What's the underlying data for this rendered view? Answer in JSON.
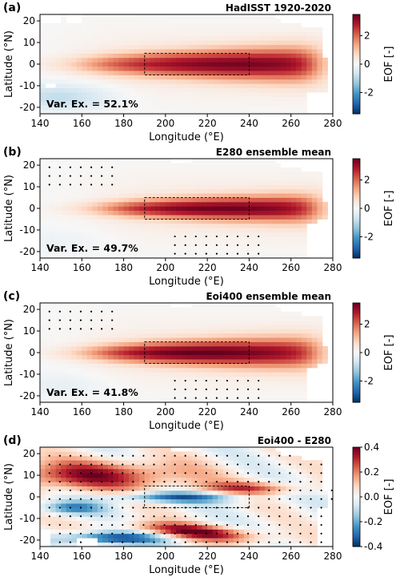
{
  "chart_data": [
    {
      "type": "heatmap",
      "panel_label": "(a)",
      "title": "HadISST 1920-2020",
      "variance_text": "Var. Ex. = 52.1%",
      "xlabel": "Longitude (°E)",
      "ylabel": "Latitude (°N)",
      "xlim": [
        140,
        280
      ],
      "ylim": [
        -23,
        23
      ],
      "xticks": [
        140,
        160,
        180,
        200,
        220,
        240,
        260,
        280
      ],
      "yticks": [
        -20,
        -10,
        0,
        10,
        20
      ],
      "colorbar": {
        "label": "EOF [-]",
        "range": [
          -3.5,
          3.5
        ],
        "ticks": [
          -2,
          0,
          2
        ],
        "colormap": "RdBu_r"
      },
      "box": {
        "lon": [
          190,
          240
        ],
        "lat": [
          -5,
          5
        ]
      },
      "pattern": {
        "peak": 3.0,
        "peak_lon": 235,
        "width_lat": 6.0,
        "onset_lon": 140,
        "neg_sw": -0.9
      },
      "stippling": false
    },
    {
      "type": "heatmap",
      "panel_label": "(b)",
      "title": "E280 ensemble mean",
      "variance_text": "Var. Ex. = 49.7%",
      "xlabel": "Longitude (°E)",
      "ylabel": "Latitude (°N)",
      "xlim": [
        140,
        280
      ],
      "ylim": [
        -23,
        23
      ],
      "xticks": [
        140,
        160,
        180,
        200,
        220,
        240,
        260,
        280
      ],
      "yticks": [
        -20,
        -10,
        0,
        10,
        20
      ],
      "colorbar": {
        "label": "EOF [-]",
        "range": [
          -3.5,
          3.5
        ],
        "ticks": [
          -2,
          0,
          2
        ],
        "colormap": "RdBu_r"
      },
      "box": {
        "lon": [
          190,
          240
        ],
        "lat": [
          -5,
          5
        ]
      },
      "pattern": {
        "peak": 3.1,
        "peak_lon": 225,
        "width_lat": 5.0,
        "onset_lon": 150,
        "neg_sw": -0.2
      },
      "stippling": true
    },
    {
      "type": "heatmap",
      "panel_label": "(c)",
      "title": "Eoi400 ensemble mean",
      "variance_text": "Var. Ex. = 41.8%",
      "xlabel": "Longitude (°E)",
      "ylabel": "Latitude (°N)",
      "xlim": [
        140,
        280
      ],
      "ylim": [
        -23,
        23
      ],
      "xticks": [
        140,
        160,
        180,
        200,
        220,
        240,
        260,
        280
      ],
      "yticks": [
        -20,
        -10,
        0,
        10,
        20
      ],
      "colorbar": {
        "label": "EOF [-]",
        "range": [
          -3.5,
          3.5
        ],
        "ticks": [
          -2,
          0,
          2
        ],
        "colormap": "RdBu_r"
      },
      "box": {
        "lon": [
          190,
          240
        ],
        "lat": [
          -5,
          5
        ]
      },
      "pattern": {
        "peak": 3.2,
        "peak_lon": 215,
        "width_lat": 5.5,
        "onset_lon": 145,
        "neg_sw": -0.3
      },
      "stippling": true
    },
    {
      "type": "heatmap",
      "panel_label": "(d)",
      "title": "Eoi400 - E280",
      "variance_text": "",
      "xlabel": "Longitude (°E)",
      "ylabel": "Latitude (°N)",
      "xlim": [
        140,
        280
      ],
      "ylim": [
        -23,
        23
      ],
      "xticks": [
        140,
        160,
        180,
        200,
        220,
        240,
        260,
        280
      ],
      "yticks": [
        -20,
        -10,
        0,
        10,
        20
      ],
      "colorbar": {
        "label": "EOF [-]",
        "range": [
          -0.4,
          0.4
        ],
        "ticks": [
          -0.4,
          -0.2,
          0.0,
          0.2,
          0.4
        ],
        "colormap": "RdBu_r"
      },
      "box": {
        "lon": [
          190,
          240
        ],
        "lat": [
          -5,
          5
        ]
      },
      "pattern": {
        "difference": true
      },
      "stippling": true
    }
  ]
}
